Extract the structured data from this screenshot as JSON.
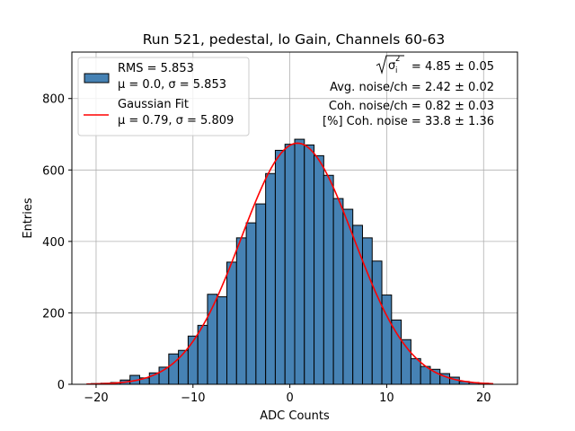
{
  "chart_data": {
    "type": "bar",
    "title": "Run 521, pedestal, lo Gain, Channels 60-63",
    "xlabel": "ADC Counts",
    "ylabel": "Entries",
    "xlim": [
      -22.5,
      23.5
    ],
    "ylim": [
      0,
      930
    ],
    "xticks": [
      -20,
      -10,
      0,
      10,
      20
    ],
    "xtick_labels": [
      "−20",
      "−10",
      "0",
      "10",
      "20"
    ],
    "yticks": [
      0,
      200,
      400,
      600,
      800
    ],
    "grid": true,
    "legend_placement": "top-left",
    "bin_width": 1,
    "series": [
      {
        "name": "RMS = 5.853",
        "name_line2": "μ = 0.0, σ = 5.853",
        "type": "histogram",
        "color": "#4682b4",
        "x": [
          -21,
          -20,
          -19,
          -18,
          -17,
          -16,
          -15,
          -14,
          -13,
          -12,
          -11,
          -10,
          -9,
          -8,
          -7,
          -6,
          -5,
          -4,
          -3,
          -2,
          -1,
          0,
          1,
          2,
          3,
          4,
          5,
          6,
          7,
          8,
          9,
          10,
          11,
          12,
          13,
          14,
          15,
          16,
          17,
          18,
          19,
          20,
          21
        ],
        "values": [
          0,
          2,
          3,
          5,
          12,
          25,
          18,
          32,
          48,
          85,
          95,
          135,
          165,
          252,
          245,
          342,
          410,
          452,
          505,
          590,
          655,
          672,
          686,
          670,
          640,
          585,
          520,
          490,
          445,
          410,
          345,
          250,
          180,
          125,
          72,
          50,
          42,
          30,
          20,
          8,
          5,
          3,
          0
        ]
      },
      {
        "name": "Gaussian Fit",
        "name_line2": "μ = 0.79, σ = 5.809",
        "type": "line",
        "color": "#ff0000",
        "mu": 0.79,
        "sigma": 5.809,
        "amplitude": 675,
        "x_range": [
          -21,
          21
        ]
      }
    ],
    "annotations": [
      {
        "prefix": "√",
        "symbol": "σ",
        "sub": "i",
        "sup": "2",
        "text": " = 4.85 ± 0.05"
      },
      {
        "text": "Avg. noise/ch = 2.42 ± 0.02"
      },
      {
        "text": "Coh. noise/ch = 0.82 ± 0.03"
      },
      {
        "text": "[%] Coh. noise = 33.8 ± 1.36"
      }
    ]
  }
}
